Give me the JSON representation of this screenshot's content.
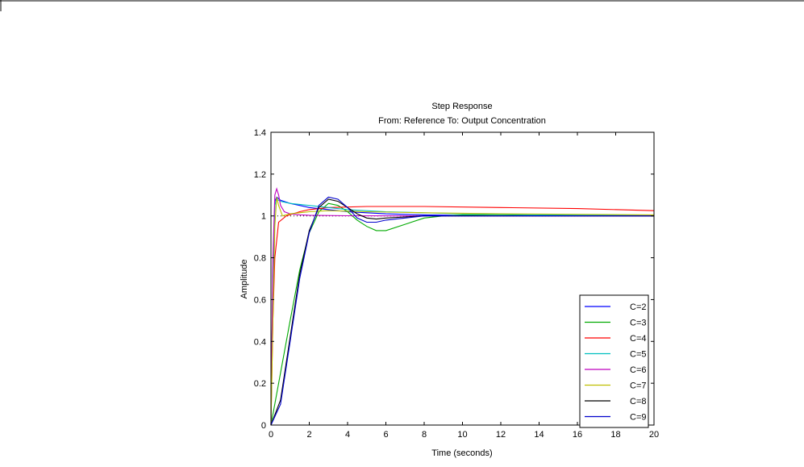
{
  "chart_data": {
    "type": "line",
    "title": "Step Response",
    "subtitle": "From: Reference  To: Output Concentration",
    "xlabel": "Time (seconds)",
    "ylabel": "Amplitude",
    "xlim": [
      0,
      20
    ],
    "ylim": [
      0,
      1.4
    ],
    "xticks": [
      0,
      2,
      4,
      6,
      8,
      10,
      12,
      14,
      16,
      18,
      20
    ],
    "yticks": [
      0,
      0.2,
      0.4,
      0.6,
      0.8,
      1,
      1.2,
      1.4
    ],
    "grid": false,
    "legend_position": "bottom-right",
    "reference_line": 1,
    "series": [
      {
        "name": "C=2",
        "color": "#0000ff",
        "x": [
          0,
          0.1,
          0.2,
          0.3,
          0.5,
          1,
          1.5,
          2,
          3,
          4,
          5,
          6,
          8,
          10,
          15,
          20
        ],
        "y": [
          0,
          0.7,
          1.07,
          1.09,
          1.075,
          1.06,
          1.05,
          1.04,
          1.03,
          1.02,
          1.015,
          1.01,
          1.005,
          1.003,
          1.001,
          1.0
        ]
      },
      {
        "name": "C=3",
        "color": "#00aa00",
        "x": [
          0,
          0.5,
          1,
          1.5,
          2,
          2.5,
          3,
          3.5,
          4,
          4.5,
          5,
          5.5,
          6,
          7,
          8,
          9,
          10,
          12,
          15,
          20
        ],
        "y": [
          0,
          0.25,
          0.5,
          0.74,
          0.92,
          1.02,
          1.06,
          1.05,
          1.02,
          0.98,
          0.95,
          0.93,
          0.93,
          0.96,
          0.99,
          1.0,
          1.005,
          1.003,
          1.001,
          1.0
        ]
      },
      {
        "name": "C=4",
        "color": "#ff0000",
        "x": [
          0,
          0.1,
          0.2,
          0.4,
          0.8,
          1.5,
          2,
          3,
          5,
          8,
          12,
          16,
          20
        ],
        "y": [
          0,
          0.5,
          0.8,
          0.97,
          1.0,
          1.02,
          1.03,
          1.04,
          1.045,
          1.045,
          1.04,
          1.035,
          1.025
        ]
      },
      {
        "name": "C=5",
        "color": "#00bfbf",
        "x": [
          0,
          0.1,
          0.2,
          0.3,
          0.5,
          1,
          2,
          3,
          4,
          6,
          8,
          10,
          14,
          20
        ],
        "y": [
          0,
          0.75,
          1.05,
          1.08,
          1.07,
          1.06,
          1.05,
          1.04,
          1.03,
          1.02,
          1.015,
          1.01,
          1.005,
          1.002
        ]
      },
      {
        "name": "C=6",
        "color": "#bf00bf",
        "x": [
          0,
          0.1,
          0.2,
          0.3,
          0.4,
          0.5,
          0.7,
          1,
          1.5,
          2,
          4,
          8,
          20
        ],
        "y": [
          0,
          0.8,
          1.1,
          1.13,
          1.1,
          1.05,
          1.02,
          1.01,
          1.005,
          1.003,
          1.001,
          1.0,
          1.0
        ]
      },
      {
        "name": "C=7",
        "color": "#bfbf00",
        "x": [
          0,
          0.1,
          0.2,
          0.3,
          0.4,
          0.6,
          1,
          2,
          3,
          5,
          8,
          12,
          20
        ],
        "y": [
          0,
          0.5,
          0.95,
          1.09,
          1.05,
          1.0,
          1.01,
          1.02,
          1.025,
          1.02,
          1.015,
          1.01,
          1.005
        ]
      },
      {
        "name": "C=8",
        "color": "#000000",
        "x": [
          0,
          0.5,
          1,
          1.5,
          2,
          2.5,
          3,
          3.5,
          4,
          4.5,
          5,
          5.5,
          6,
          7,
          8,
          10,
          12,
          15,
          20
        ],
        "y": [
          0,
          0.12,
          0.42,
          0.72,
          0.93,
          1.04,
          1.08,
          1.07,
          1.04,
          1.01,
          0.99,
          0.985,
          0.99,
          0.995,
          1.0,
          1.0,
          1.0,
          1.0,
          1.0
        ]
      },
      {
        "name": "C=9",
        "color": "#0000cc",
        "x": [
          0,
          0.5,
          1,
          1.5,
          2,
          2.5,
          3,
          3.5,
          4,
          4.5,
          5,
          5.5,
          6,
          7,
          8,
          10,
          12,
          15,
          20
        ],
        "y": [
          0,
          0.1,
          0.4,
          0.7,
          0.92,
          1.05,
          1.09,
          1.08,
          1.04,
          0.99,
          0.97,
          0.97,
          0.98,
          0.99,
          1.0,
          1.0,
          1.0,
          1.0,
          1.0
        ]
      }
    ]
  }
}
